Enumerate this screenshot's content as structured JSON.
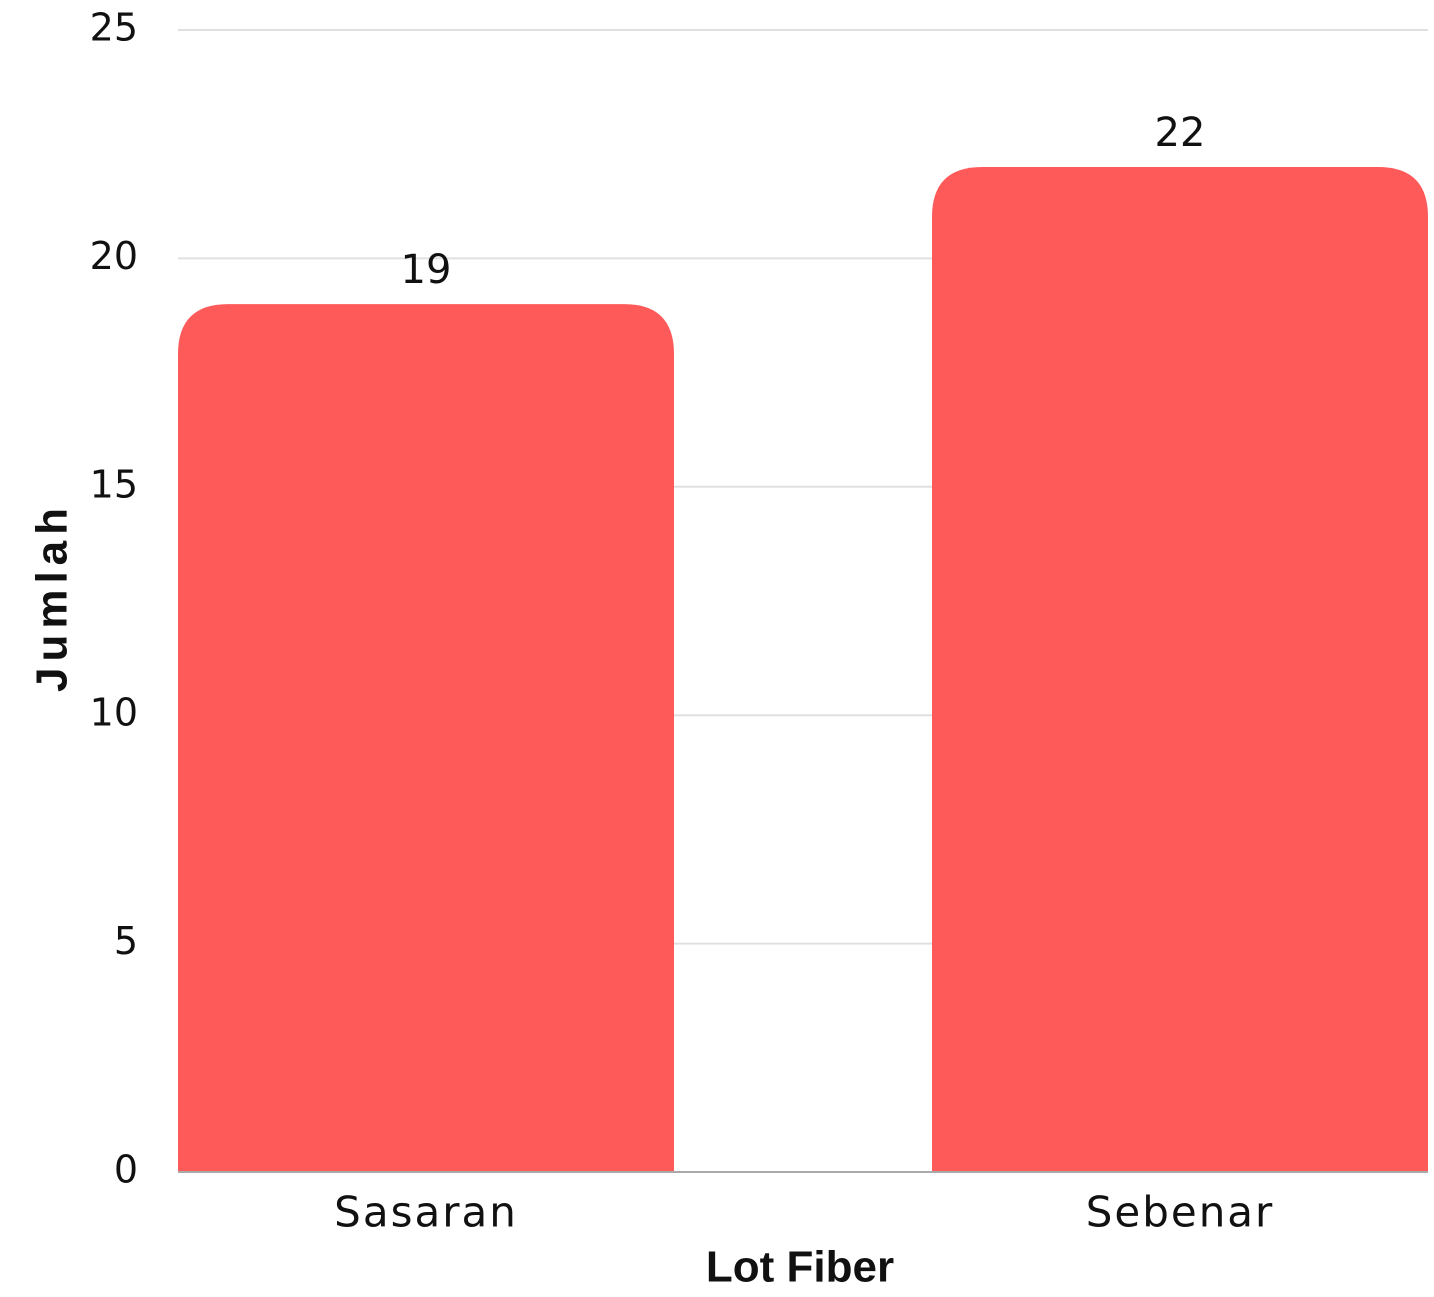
{
  "chart_data": {
    "type": "bar",
    "categories": [
      "Sasaran",
      "Sebenar"
    ],
    "values": [
      19,
      22
    ],
    "color": "#ff5a5a",
    "xlabel": "Lot Fiber",
    "ylabel": "Jumlah",
    "ylim": [
      0,
      25
    ],
    "yticks": [
      0,
      5,
      10,
      15,
      20,
      25
    ],
    "grid": true
  }
}
